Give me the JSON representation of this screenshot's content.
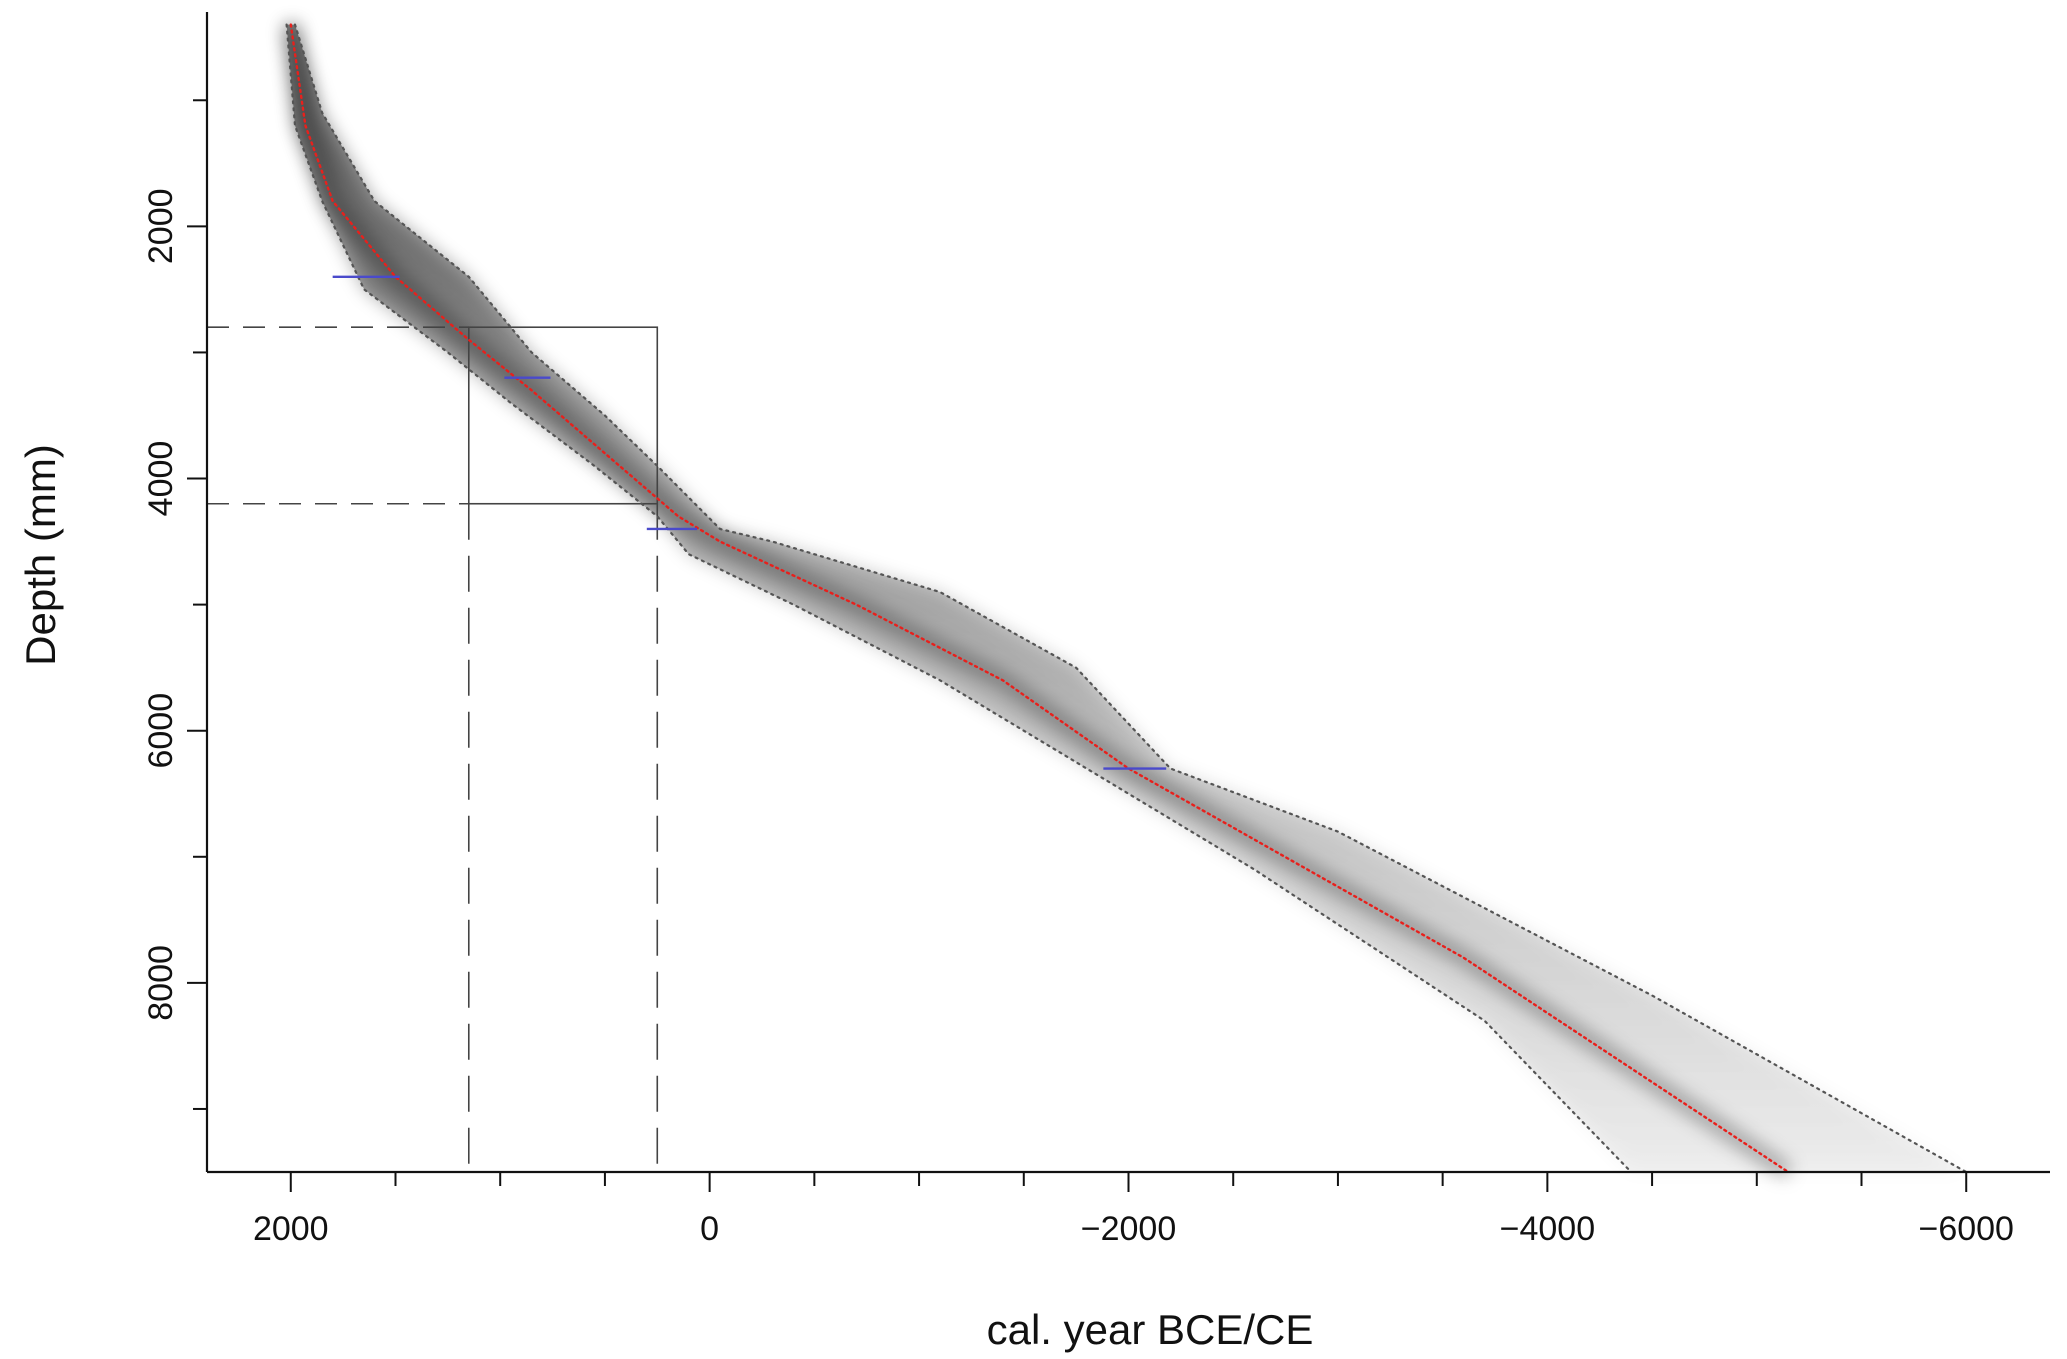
{
  "chart_data": {
    "type": "line",
    "title": "",
    "xlabel": "cal. year BCE/CE",
    "ylabel": "Depth (mm)",
    "x_ticks": [
      2000,
      0,
      -2000,
      -4000,
      -6000
    ],
    "x_tick_labels": [
      "2000",
      "0",
      "−2000",
      "−4000",
      "−6000"
    ],
    "y_ticks": [
      2000,
      4000,
      6000,
      8000
    ],
    "y_tick_labels": [
      "2000",
      "4000",
      "6000",
      "8000"
    ],
    "xlim": [
      2400,
      -6400
    ],
    "ylim": [
      9500,
      300
    ],
    "x_axis_reversed": true,
    "y_axis_inverted": true,
    "grid": false,
    "colors": {
      "median": "#e8201c",
      "bounds": "#555555",
      "dates": "#4a4acb",
      "envelope": "#000000",
      "highlight": "#444444"
    },
    "series": [
      {
        "values": [
          {
            "x": 2000,
            "y": 400
          },
          {
            "x": 1930,
            "y": 1200
          },
          {
            "x": 1800,
            "y": 1800
          },
          {
            "x": 1500,
            "y": 2400
          },
          {
            "x": 1150,
            "y": 2900
          },
          {
            "x": 850,
            "y": 3300
          },
          {
            "x": 500,
            "y": 3800
          },
          {
            "x": 150,
            "y": 4300
          },
          {
            "x": -50,
            "y": 4500
          },
          {
            "x": -700,
            "y": 5000
          },
          {
            "x": -1400,
            "y": 5600
          },
          {
            "x": -2000,
            "y": 6300
          },
          {
            "x": -3600,
            "y": 7800
          },
          {
            "x": -5150,
            "y": 9500
          }
        ]
      },
      {
        "values": [
          {
            "x": 2020,
            "y": 400
          },
          {
            "x": 1980,
            "y": 1200
          },
          {
            "x": 1850,
            "y": 1800
          },
          {
            "x": 1650,
            "y": 2500
          },
          {
            "x": 1250,
            "y": 3000
          },
          {
            "x": 950,
            "y": 3400
          },
          {
            "x": 550,
            "y": 3900
          },
          {
            "x": 250,
            "y": 4300
          },
          {
            "x": 100,
            "y": 4600
          },
          {
            "x": -400,
            "y": 5000
          },
          {
            "x": -1100,
            "y": 5600
          },
          {
            "x": -1800,
            "y": 6300
          },
          {
            "x": -2600,
            "y": 7100
          },
          {
            "x": -3700,
            "y": 8300
          },
          {
            "x": -4400,
            "y": 9500
          }
        ]
      },
      {
        "values": [
          {
            "x": 1980,
            "y": 400
          },
          {
            "x": 1850,
            "y": 1100
          },
          {
            "x": 1600,
            "y": 1800
          },
          {
            "x": 1150,
            "y": 2400
          },
          {
            "x": 850,
            "y": 3000
          },
          {
            "x": 500,
            "y": 3500
          },
          {
            "x": 250,
            "y": 3900
          },
          {
            "x": -50,
            "y": 4400
          },
          {
            "x": -300,
            "y": 4500
          },
          {
            "x": -1100,
            "y": 4900
          },
          {
            "x": -1750,
            "y": 5500
          },
          {
            "x": -2200,
            "y": 6300
          },
          {
            "x": -3000,
            "y": 6800
          },
          {
            "x": -4500,
            "y": 8100
          },
          {
            "x": -6000,
            "y": 9500
          }
        ]
      }
    ],
    "dated_levels": [
      {
        "depth": 2400,
        "x_from": 1800,
        "x_to": 1480
      },
      {
        "depth": 3200,
        "x_from": 980,
        "x_to": 760
      },
      {
        "depth": 4400,
        "x_from": 300,
        "x_to": 60
      },
      {
        "depth": 6300,
        "x_from": -1880,
        "x_to": -2180
      }
    ],
    "highlight_window": {
      "depth_range": [
        2800,
        4200
      ],
      "year_range": [
        1150,
        250
      ]
    }
  }
}
